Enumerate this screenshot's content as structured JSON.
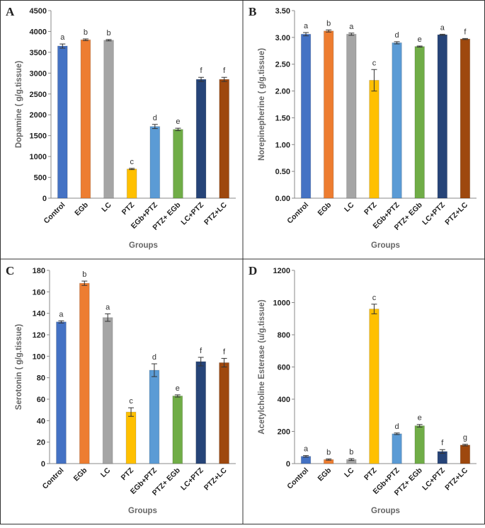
{
  "chart_data": [
    {
      "type": "bar",
      "panel": "A",
      "y_label": "Dopamine (  g/g.tissue)",
      "x_label": "Groups",
      "categories": [
        "Control",
        "EGb",
        "LC",
        "PTZ",
        "EGb+PTZ",
        "PTZ+ EGb",
        "LC+PTZ",
        "PTZ+LC"
      ],
      "values": [
        3650,
        3800,
        3790,
        700,
        1720,
        1650,
        2850,
        2850
      ],
      "errors": [
        50,
        20,
        15,
        15,
        50,
        30,
        50,
        50
      ],
      "annotations": [
        "a",
        "b",
        "b",
        "c",
        "d",
        "e",
        "f",
        "f"
      ],
      "colors": [
        "#4472c4",
        "#ed7d31",
        "#a5a5a5",
        "#ffc000",
        "#5b9bd5",
        "#70ad47",
        "#264478",
        "#9e480e"
      ],
      "ylim": [
        0,
        4500
      ],
      "yticks": [
        0,
        500,
        1000,
        1500,
        2000,
        2500,
        3000,
        3500,
        4000,
        4500
      ]
    },
    {
      "type": "bar",
      "panel": "B",
      "y_label": "Norepinepherine (  g/g.tissue)",
      "x_label": "Groups",
      "categories": [
        "Control",
        "EGb",
        "LC",
        "PTZ",
        "EGb+PTZ",
        "PTZ+ EGb",
        "LC+PTZ",
        "PTZ+LC"
      ],
      "values": [
        3.06,
        3.12,
        3.06,
        2.2,
        2.9,
        2.83,
        3.05,
        2.97
      ],
      "errors": [
        0.03,
        0.02,
        0.02,
        0.2,
        0.02,
        0.01,
        0.01,
        0.01
      ],
      "annotations": [
        "a",
        "b",
        "a",
        "c",
        "d",
        "e",
        "a",
        "f"
      ],
      "colors": [
        "#4472c4",
        "#ed7d31",
        "#a5a5a5",
        "#ffc000",
        "#5b9bd5",
        "#70ad47",
        "#264478",
        "#9e480e"
      ],
      "ylim": [
        0,
        3.5
      ],
      "yticks": [
        {
          "value": 0,
          "label": "0.00"
        },
        {
          "value": 0.5,
          "label": "0.50"
        },
        {
          "value": 1,
          "label": "1.00"
        },
        {
          "value": 1.5,
          "label": "1.50"
        },
        {
          "value": 2,
          "label": "2.00"
        },
        {
          "value": 2.5,
          "label": "2.50"
        },
        {
          "value": 3,
          "label": "3.00"
        },
        {
          "value": 3.5,
          "label": "3.50"
        }
      ]
    },
    {
      "type": "bar",
      "panel": "C",
      "y_label": "Serotonin (  g/g.tissue)",
      "x_label": "Groups",
      "categories": [
        "Control",
        "EGb",
        "LC",
        "PTZ",
        "EGb+PTZ",
        "PTZ+ EGb",
        "LC+PTZ",
        "PTZ+LC"
      ],
      "values": [
        132,
        168,
        136,
        48,
        87,
        63,
        95,
        94
      ],
      "errors": [
        1,
        2,
        3.5,
        4,
        6,
        1,
        4,
        4
      ],
      "annotations": [
        "a",
        "b",
        "a",
        "c",
        "d",
        "e",
        "f",
        "f"
      ],
      "colors": [
        "#4472c4",
        "#ed7d31",
        "#a5a5a5",
        "#ffc000",
        "#5b9bd5",
        "#70ad47",
        "#264478",
        "#9e480e"
      ],
      "ylim": [
        0,
        180
      ],
      "yticks": [
        0,
        20,
        40,
        60,
        80,
        100,
        120,
        140,
        160,
        180
      ]
    },
    {
      "type": "bar",
      "panel": "D",
      "y_label": "Acetylcholine Esterase (u/g.tissue)",
      "x_label": "Groups",
      "categories": [
        "Control",
        "EGb",
        "LC",
        "PTZ",
        "EGb+PTZ",
        "PTZ+ EGb",
        "LC+PTZ",
        "PTZ+LC"
      ],
      "values": [
        45,
        25,
        25,
        960,
        185,
        235,
        75,
        115
      ],
      "errors": [
        5,
        4,
        6,
        30,
        5,
        8,
        12,
        5
      ],
      "annotations": [
        "a",
        "b",
        "b",
        "c",
        "d",
        "e",
        "f",
        "g"
      ],
      "colors": [
        "#4472c4",
        "#ed7d31",
        "#a5a5a5",
        "#ffc000",
        "#5b9bd5",
        "#70ad47",
        "#264478",
        "#9e480e"
      ],
      "ylim": [
        0,
        1200
      ],
      "yticks": [
        0,
        200,
        400,
        600,
        800,
        1000,
        1200
      ]
    }
  ]
}
